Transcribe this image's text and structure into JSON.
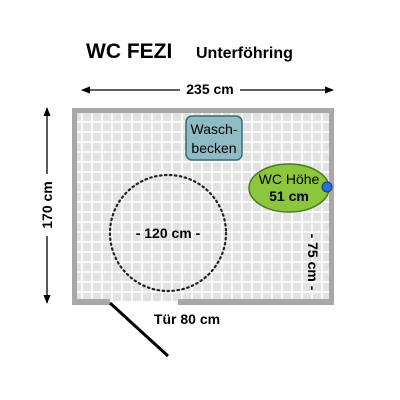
{
  "title": {
    "main": "WC FEZI",
    "location": "Unterföhring"
  },
  "dimensions": {
    "width": "235 cm",
    "depth": "170 cm",
    "door": "Tür 80 cm",
    "turning_circle": "- 120 cm -",
    "side_clearance": "- 75 cm -"
  },
  "fixtures": {
    "sink_line1": "Wasch-",
    "sink_line2": "becken",
    "wc_line1": "WC Höhe",
    "wc_line2": "51 cm"
  },
  "colors": {
    "floor_tile": "#e2e2e2",
    "grout": "#ffffff",
    "wall": "#a8a8a8",
    "sink_fill": "#8fbcc4",
    "sink_stroke": "#3a6a74",
    "wc_fill": "#8cc63f",
    "wc_stroke": "#4a7a1a",
    "flush_button": "#2a6fd6"
  }
}
